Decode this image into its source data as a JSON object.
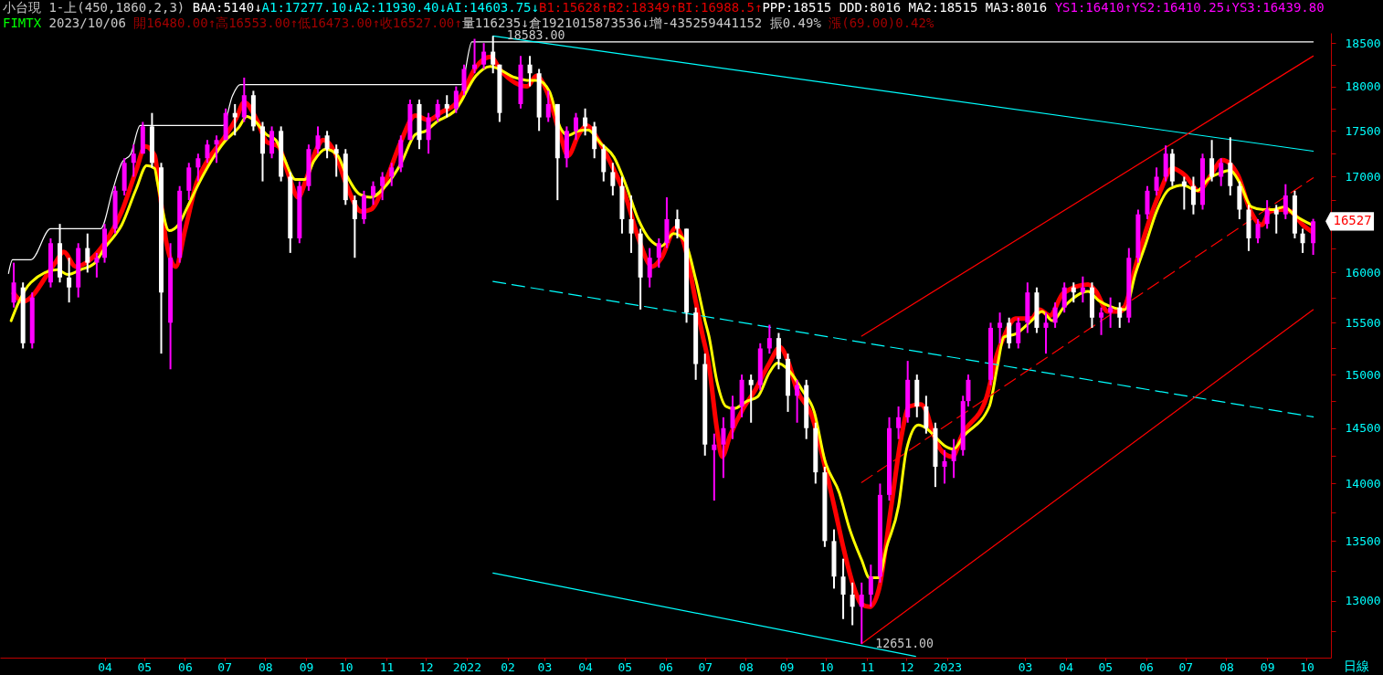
{
  "chart_data": {
    "type": "candlestick",
    "annotations": [
      "小台現 1-上(450,1860,2,3) BAA:5140↓A1:17277.10↓A2:11930.40↓AI:14603.75↓B1:15628↑B2:18349↑BI:16988.5↑PPP:18515 DDD:8016 MA2:18515 MA3:8016 YS1:16410↑YS2:16410.25↓YS3:16439.80",
      "FIMTX 2023/10/06 開16480.00↑高16553.00↑低16473.00↑收16527.00↑量116235↓倉1921015873536↓增-435259441152 振0.49% 漲(69.00)0.42%",
      "日線",
      {
        "text": "18583.00",
        "x": "2022-01-21",
        "y": 18583
      },
      {
        "text": "12651.00",
        "x": "2022-10-28",
        "y": 12651
      },
      {
        "text": "16527",
        "x": "2023-10-06",
        "y": 16527
      }
    ],
    "x": [
      "2021-01-22",
      "2021-01-29",
      "2021-02-05",
      "2021-02-19",
      "2021-02-26",
      "2021-03-05",
      "2021-03-12",
      "2021-03-19",
      "2021-03-26",
      "2021-04-01",
      "2021-04-09",
      "2021-04-16",
      "2021-04-23",
      "2021-04-30",
      "2021-05-07",
      "2021-05-14",
      "2021-05-21",
      "2021-05-28",
      "2021-06-04",
      "2021-06-11",
      "2021-06-18",
      "2021-06-25",
      "2021-07-02",
      "2021-07-09",
      "2021-07-16",
      "2021-07-23",
      "2021-07-30",
      "2021-08-06",
      "2021-08-13",
      "2021-08-20",
      "2021-08-27",
      "2021-09-03",
      "2021-09-10",
      "2021-09-17",
      "2021-09-24",
      "2021-10-01",
      "2021-10-08",
      "2021-10-15",
      "2021-10-22",
      "2021-10-29",
      "2021-11-05",
      "2021-11-12",
      "2021-11-19",
      "2021-11-26",
      "2021-12-03",
      "2021-12-10",
      "2021-12-17",
      "2021-12-24",
      "2021-12-30",
      "2022-01-07",
      "2022-01-14",
      "2022-01-21",
      "2022-01-26",
      "2022-02-11",
      "2022-02-18",
      "2022-02-25",
      "2022-03-04",
      "2022-03-11",
      "2022-03-18",
      "2022-03-25",
      "2022-04-01",
      "2022-04-08",
      "2022-04-15",
      "2022-04-22",
      "2022-04-29",
      "2022-05-06",
      "2022-05-13",
      "2022-05-20",
      "2022-05-27",
      "2022-06-02",
      "2022-06-10",
      "2022-06-17",
      "2022-06-24",
      "2022-07-01",
      "2022-07-08",
      "2022-07-15",
      "2022-07-22",
      "2022-07-29",
      "2022-08-05",
      "2022-08-12",
      "2022-08-19",
      "2022-08-26",
      "2022-09-02",
      "2022-09-09",
      "2022-09-16",
      "2022-09-23",
      "2022-09-30",
      "2022-10-07",
      "2022-10-14",
      "2022-10-21",
      "2022-10-28",
      "2022-11-04",
      "2022-11-11",
      "2022-11-18",
      "2022-11-25",
      "2022-12-02",
      "2022-12-09",
      "2022-12-16",
      "2022-12-23",
      "2022-12-30",
      "2023-01-06",
      "2023-01-13",
      "2023-01-17",
      "2023-02-03",
      "2023-02-10",
      "2023-02-17",
      "2023-02-24",
      "2023-03-03",
      "2023-03-10",
      "2023-03-17",
      "2023-03-24",
      "2023-03-31",
      "2023-04-07",
      "2023-04-14",
      "2023-04-21",
      "2023-04-28",
      "2023-05-05",
      "2023-05-12",
      "2023-05-19",
      "2023-05-26",
      "2023-06-02",
      "2023-06-09",
      "2023-06-16",
      "2023-06-21",
      "2023-06-30",
      "2023-07-07",
      "2023-07-14",
      "2023-07-21",
      "2023-07-28",
      "2023-08-04",
      "2023-08-11",
      "2023-08-18",
      "2023-08-25",
      "2023-09-01",
      "2023-09-08",
      "2023-09-15",
      "2023-09-22",
      "2023-09-28",
      "2023-10-06"
    ],
    "ohlc": [
      [
        15700,
        16100,
        15650,
        15900
      ],
      [
        15850,
        15900,
        15250,
        15300
      ],
      [
        15300,
        15800,
        15250,
        15750
      ],
      [
        15900,
        16350,
        15850,
        16300
      ],
      [
        16300,
        16500,
        15900,
        15950
      ],
      [
        15950,
        16150,
        15700,
        15850
      ],
      [
        15850,
        16300,
        15750,
        16250
      ],
      [
        16250,
        16400,
        16000,
        16100
      ],
      [
        16100,
        16200,
        15950,
        16150
      ],
      [
        16150,
        16500,
        16100,
        16450
      ],
      [
        16450,
        16900,
        16400,
        16850
      ],
      [
        16850,
        17200,
        16800,
        17150
      ],
      [
        17150,
        17350,
        17000,
        17250
      ],
      [
        17250,
        17600,
        17250,
        17550
      ],
      [
        17550,
        17700,
        17100,
        17150
      ],
      [
        17100,
        17150,
        15200,
        15800
      ],
      [
        15500,
        16300,
        15050,
        16150
      ],
      [
        16150,
        16900,
        16100,
        16850
      ],
      [
        16850,
        17150,
        16750,
        17100
      ],
      [
        17100,
        17250,
        16950,
        17200
      ],
      [
        17200,
        17400,
        17150,
        17350
      ],
      [
        17350,
        17450,
        17150,
        17400
      ],
      [
        17400,
        17750,
        17400,
        17700
      ],
      [
        17700,
        17800,
        17450,
        17650
      ],
      [
        17650,
        18100,
        17600,
        17900
      ],
      [
        17900,
        17950,
        17500,
        17550
      ],
      [
        17550,
        17600,
        16950,
        17250
      ],
      [
        17250,
        17550,
        17200,
        17500
      ],
      [
        17500,
        17550,
        16950,
        17000
      ],
      [
        17000,
        17050,
        16200,
        16350
      ],
      [
        16350,
        16950,
        16300,
        16900
      ],
      [
        16900,
        17350,
        16850,
        17300
      ],
      [
        17300,
        17550,
        17250,
        17450
      ],
      [
        17450,
        17500,
        17200,
        17300
      ],
      [
        17300,
        17350,
        17000,
        17250
      ],
      [
        17250,
        17300,
        16700,
        16750
      ],
      [
        16750,
        16800,
        16150,
        16550
      ],
      [
        16550,
        16850,
        16500,
        16800
      ],
      [
        16800,
        16950,
        16700,
        16900
      ],
      [
        16900,
        17050,
        16750,
        17000
      ],
      [
        17000,
        17150,
        16900,
        17100
      ],
      [
        17100,
        17450,
        17050,
        17400
      ],
      [
        17400,
        17850,
        17400,
        17800
      ],
      [
        17800,
        17850,
        17300,
        17400
      ],
      [
        17400,
        17700,
        17250,
        17650
      ],
      [
        17650,
        17850,
        17600,
        17800
      ],
      [
        17800,
        17900,
        17650,
        17750
      ],
      [
        17750,
        18000,
        17700,
        17950
      ],
      [
        17950,
        18250,
        17900,
        18200
      ],
      [
        18200,
        18550,
        18150,
        18250
      ],
      [
        18250,
        18500,
        18200,
        18400
      ],
      [
        18400,
        18583,
        18150,
        18250
      ],
      [
        18250,
        18250,
        17600,
        17700
      ],
      [
        17800,
        18350,
        17750,
        18250
      ],
      [
        18250,
        18350,
        18000,
        18150
      ],
      [
        18150,
        18200,
        17500,
        17650
      ],
      [
        17650,
        17950,
        17600,
        17800
      ],
      [
        17800,
        17800,
        16750,
        17200
      ],
      [
        17200,
        17550,
        17100,
        17500
      ],
      [
        17500,
        17700,
        17400,
        17650
      ],
      [
        17650,
        17750,
        17450,
        17550
      ],
      [
        17550,
        17600,
        17200,
        17300
      ],
      [
        17300,
        17350,
        16950,
        17050
      ],
      [
        17050,
        17150,
        16800,
        16900
      ],
      [
        16900,
        17000,
        16400,
        16550
      ],
      [
        16550,
        16800,
        16200,
        16400
      ],
      [
        16400,
        16450,
        15630,
        15950
      ],
      [
        15950,
        16250,
        15850,
        16150
      ],
      [
        16150,
        16350,
        16050,
        16300
      ],
      [
        16300,
        16780,
        16250,
        16550
      ],
      [
        16550,
        16650,
        16350,
        16450
      ],
      [
        16450,
        16450,
        15500,
        15600
      ],
      [
        15600,
        15650,
        14950,
        15100
      ],
      [
        15100,
        15200,
        14250,
        14350
      ],
      [
        14300,
        14450,
        13850,
        14350
      ],
      [
        14350,
        14600,
        14050,
        14500
      ],
      [
        14500,
        14800,
        14400,
        14700
      ],
      [
        14700,
        15000,
        14600,
        14950
      ],
      [
        14950,
        15000,
        14550,
        14900
      ],
      [
        14900,
        15300,
        14850,
        15250
      ],
      [
        15250,
        15480,
        15200,
        15350
      ],
      [
        15350,
        15400,
        15050,
        15150
      ],
      [
        15150,
        15200,
        14650,
        14800
      ],
      [
        14800,
        14950,
        14550,
        14900
      ],
      [
        14900,
        14950,
        14400,
        14500
      ],
      [
        14500,
        14550,
        14000,
        14100
      ],
      [
        14100,
        14150,
        13450,
        13500
      ],
      [
        13500,
        13600,
        13100,
        13200
      ],
      [
        13200,
        13350,
        12850,
        13050
      ],
      [
        13050,
        13150,
        12800,
        12950
      ],
      [
        12950,
        13150,
        12651,
        13050
      ],
      [
        13050,
        13300,
        12950,
        13200
      ],
      [
        13200,
        14000,
        13150,
        13900
      ],
      [
        13900,
        14600,
        13850,
        14500
      ],
      [
        14500,
        14700,
        14400,
        14600
      ],
      [
        14600,
        15130,
        14550,
        14950
      ],
      [
        14950,
        15000,
        14600,
        14700
      ],
      [
        14700,
        14800,
        14450,
        14500
      ],
      [
        14500,
        14550,
        13970,
        14150
      ],
      [
        14150,
        14300,
        14000,
        14200
      ],
      [
        14200,
        14400,
        14050,
        14300
      ],
      [
        14300,
        14800,
        14250,
        14750
      ],
      [
        14750,
        15000,
        14700,
        14950
      ],
      [
        14950,
        15500,
        14900,
        15450
      ],
      [
        15450,
        15600,
        15300,
        15500
      ],
      [
        15500,
        15550,
        15250,
        15300
      ],
      [
        15300,
        15550,
        15250,
        15500
      ],
      [
        15500,
        15900,
        15400,
        15800
      ],
      [
        15800,
        15850,
        15400,
        15450
      ],
      [
        15450,
        15600,
        15200,
        15500
      ],
      [
        15500,
        15700,
        15450,
        15650
      ],
      [
        15650,
        15900,
        15600,
        15850
      ],
      [
        15850,
        15900,
        15700,
        15800
      ],
      [
        15800,
        15960,
        15700,
        15850
      ],
      [
        15850,
        15900,
        15450,
        15550
      ],
      [
        15550,
        15650,
        15380,
        15600
      ],
      [
        15600,
        15750,
        15450,
        15650
      ],
      [
        15650,
        15700,
        15450,
        15550
      ],
      [
        15550,
        16250,
        15500,
        16150
      ],
      [
        16150,
        16650,
        16100,
        16600
      ],
      [
        16600,
        16900,
        16550,
        16850
      ],
      [
        16850,
        17100,
        16800,
        17000
      ],
      [
        17000,
        17340,
        16950,
        17250
      ],
      [
        17250,
        17300,
        16900,
        16950
      ],
      [
        16950,
        17000,
        16650,
        16900
      ],
      [
        16900,
        17000,
        16600,
        16700
      ],
      [
        16700,
        17250,
        16650,
        17200
      ],
      [
        17200,
        17400,
        16950,
        17000
      ],
      [
        17000,
        17200,
        16900,
        17150
      ],
      [
        17150,
        17430,
        16800,
        16900
      ],
      [
        16900,
        16950,
        16550,
        16650
      ],
      [
        16650,
        16700,
        16220,
        16350
      ],
      [
        16350,
        16550,
        16300,
        16500
      ],
      [
        16500,
        16750,
        16450,
        16650
      ],
      [
        16650,
        16700,
        16400,
        16600
      ],
      [
        16600,
        16920,
        16550,
        16800
      ],
      [
        16800,
        16850,
        16350,
        16400
      ],
      [
        16400,
        16450,
        16200,
        16300
      ],
      [
        16300,
        16553,
        16180,
        16527
      ]
    ],
    "colors": [
      "#ff00ff",
      "#ffffff",
      "#ff00ff",
      "#ff00ff",
      "#ffffff",
      "#ffffff",
      "#ff00ff",
      "#ffffff",
      "#ff00ff",
      "#ff00ff",
      "#ff00ff",
      "#ff00ff",
      "#ff00ff",
      "#ff00ff",
      "#ffffff",
      "#ffffff",
      "#ff00ff",
      "#ff00ff",
      "#ff00ff",
      "#ff00ff",
      "#ff00ff",
      "#ff00ff",
      "#ff00ff",
      "#ffffff",
      "#ff00ff",
      "#ffffff",
      "#ffffff",
      "#ff00ff",
      "#ffffff",
      "#ffffff",
      "#ff00ff",
      "#ff00ff",
      "#ff00ff",
      "#ffffff",
      "#ffffff",
      "#ffffff",
      "#ffffff",
      "#ff00ff",
      "#ff00ff",
      "#ff00ff",
      "#ff00ff",
      "#ff00ff",
      "#ff00ff",
      "#ffffff",
      "#ff00ff",
      "#ff00ff",
      "#ffffff",
      "#ff00ff",
      "#ff00ff",
      "#ff00ff",
      "#ff00ff",
      "#ffffff",
      "#ffffff",
      "#ff00ff",
      "#ffffff",
      "#ffffff",
      "#ff00ff",
      "#ffffff",
      "#ff00ff",
      "#ff00ff",
      "#ffffff",
      "#ffffff",
      "#ffffff",
      "#ffffff",
      "#ffffff",
      "#ffffff",
      "#ffffff",
      "#ff00ff",
      "#ff00ff",
      "#ff00ff",
      "#ffffff",
      "#ffffff",
      "#ffffff",
      "#ffffff",
      "#ff00ff",
      "#ff00ff",
      "#ff00ff",
      "#ff00ff",
      "#ffffff",
      "#ff00ff",
      "#ff00ff",
      "#ffffff",
      "#ffffff",
      "#ff00ff",
      "#ffffff",
      "#ffffff",
      "#ffffff",
      "#ffffff",
      "#ffffff",
      "#ffffff",
      "#ff00ff",
      "#ff00ff",
      "#ff00ff",
      "#ff00ff",
      "#ff00ff",
      "#ff00ff",
      "#ffffff",
      "#ffffff",
      "#ffffff",
      "#ff00ff",
      "#ff00ff",
      "#ff00ff",
      "#ff00ff",
      "#ff00ff",
      "#ff00ff",
      "#ffffff",
      "#ff00ff",
      "#ff00ff",
      "#ffffff",
      "#ff00ff",
      "#ff00ff",
      "#ff00ff",
      "#ffffff",
      "#ff00ff",
      "#ffffff",
      "#ff00ff",
      "#ff00ff",
      "#ffffff",
      "#ff00ff",
      "#ff00ff",
      "#ff00ff",
      "#ff00ff",
      "#ff00ff",
      "#ffffff",
      "#ffffff",
      "#ffffff",
      "#ff00ff",
      "#ffffff",
      "#ff00ff",
      "#ffffff",
      "#ffffff",
      "#ffffff",
      "#ff00ff",
      "#ff00ff",
      "#ffffff",
      "#ff00ff",
      "#ffffff",
      "#ffffff",
      "#ff00ff"
    ],
    "series": [
      {
        "type": "line",
        "color": "#ff0000",
        "x": [
          "2021-01-22",
          "2021-01-29",
          "2021-02-22",
          "2021-03-01",
          "2021-03-10",
          "2021-03-21",
          "2021-04-01",
          "2021-04-14",
          "2021-04-25",
          "2021-05-02",
          "2021-05-09",
          "2021-05-12",
          "2021-05-18",
          "2021-05-25",
          "2021-06-01",
          "2021-06-10",
          "2021-06-18",
          "2021-07-01",
          "2021-07-10",
          "2021-07-16",
          "2021-07-26",
          "2021-08-02",
          "2021-08-11",
          "2021-08-19",
          "2021-08-26",
          "2021-09-01",
          "2021-09-09",
          "2021-09-14",
          "2021-09-23",
          "2021-10-01",
          "2021-10-13",
          "2021-10-20",
          "2021-11-01",
          "2021-11-12",
          "2021-11-23",
          "2021-12-03",
          "2021-12-13",
          "2021-12-24",
          "2021-12-28",
          "2022-01-08",
          "2022-01-19",
          "2022-01-27",
          "2022-02-16",
          "2022-02-23",
          "2022-03-03",
          "2022-03-13",
          "2022-03-19",
          "2022-03-27",
          "2022-04-02",
          "2022-04-11",
          "2022-04-23",
          "2022-05-02",
          "2022-05-11",
          "2022-05-22",
          "2022-05-29",
          "2022-06-09",
          "2022-06-15",
          "2022-06-24",
          "2022-06-29",
          "2022-07-04",
          "2022-07-10",
          "2022-07-14",
          "2022-07-20",
          "2022-07-30",
          "2022-08-08",
          "2022-08-19",
          "2022-08-27",
          "2022-09-02",
          "2022-09-09",
          "2022-09-20",
          "2022-09-30",
          "2022-10-08",
          "2022-10-14",
          "2022-10-21",
          "2022-10-28",
          "2022-11-03",
          "2022-11-10",
          "2022-11-19",
          "2022-11-27",
          "2022-12-03",
          "2022-12-12",
          "2022-12-16",
          "2022-12-21",
          "2022-12-28",
          "2023-01-05",
          "2023-01-12",
          "2023-01-31",
          "2023-02-08",
          "2023-02-13",
          "2023-02-22",
          "2023-03-06",
          "2023-03-12",
          "2023-03-20",
          "2023-03-30",
          "2023-04-18",
          "2023-04-24",
          "2023-05-03",
          "2023-05-12",
          "2023-05-16",
          "2023-05-24",
          "2023-06-01",
          "2023-06-12",
          "2023-06-21",
          "2023-07-01",
          "2023-07-11",
          "2023-07-20",
          "2023-07-29",
          "2023-08-10",
          "2023-08-19",
          "2023-08-28",
          "2023-09-03",
          "2023-09-12",
          "2023-09-19",
          "2023-09-28",
          "2023-10-05"
        ],
        "values": [
          15790,
          15710,
          16090,
          16210,
          16060,
          16130,
          16300,
          16630,
          17070,
          17330,
          17230,
          16940,
          16300,
          16060,
          16430,
          16940,
          17170,
          17430,
          17640,
          17820,
          17610,
          17380,
          17330,
          17010,
          16780,
          16970,
          17300,
          17400,
          17260,
          16940,
          16630,
          16650,
          16970,
          17380,
          17670,
          17620,
          17710,
          17810,
          17900,
          18220,
          18340,
          18180,
          18000,
          18120,
          17940,
          17460,
          17230,
          17460,
          17560,
          17400,
          17070,
          16780,
          16370,
          16060,
          16150,
          16460,
          16300,
          15710,
          15390,
          15090,
          14500,
          14240,
          14430,
          14680,
          14850,
          15110,
          15260,
          15130,
          14850,
          14620,
          14160,
          13760,
          13450,
          13150,
          12970,
          12950,
          13090,
          13760,
          14410,
          14700,
          14720,
          14660,
          14460,
          14290,
          14240,
          14430,
          14790,
          15200,
          15360,
          15540,
          15540,
          15630,
          15570,
          15790,
          15880,
          15810,
          15610,
          15610,
          15660,
          16060,
          16430,
          16850,
          17090,
          17010,
          16850,
          17010,
          17180,
          17010,
          16650,
          16490,
          16630,
          16650,
          16630,
          16490,
          16420
        ]
      },
      {
        "type": "line",
        "color": "#ffff00",
        "x": [
          "2021-01-20",
          "2021-01-26",
          "2021-02-04",
          "2021-02-24",
          "2021-03-04",
          "2021-03-14",
          "2021-03-24",
          "2021-04-01",
          "2021-04-14",
          "2021-04-25",
          "2021-05-03",
          "2021-05-09",
          "2021-05-11",
          "2021-05-20",
          "2021-05-27",
          "2021-06-03",
          "2021-06-12",
          "2021-06-21",
          "2021-07-01",
          "2021-07-12",
          "2021-07-18",
          "2021-07-24",
          "2021-08-02",
          "2021-08-09",
          "2021-08-15",
          "2021-08-24",
          "2021-08-31",
          "2021-09-07",
          "2021-09-16",
          "2021-09-25",
          "2021-10-01",
          "2021-10-12",
          "2021-10-20",
          "2021-11-01",
          "2021-11-12",
          "2021-11-23",
          "2021-12-01",
          "2021-12-10",
          "2021-12-18",
          "2021-12-24",
          "2021-12-27",
          "2022-01-08",
          "2022-01-19",
          "2022-02-07",
          "2022-02-16",
          "2022-02-24",
          "2022-03-05",
          "2022-03-13",
          "2022-03-19",
          "2022-03-27",
          "2022-04-03",
          "2022-04-13",
          "2022-04-23",
          "2022-05-02",
          "2022-05-11",
          "2022-05-20",
          "2022-05-29",
          "2022-06-07",
          "2022-06-15",
          "2022-06-24",
          "2022-07-01",
          "2022-07-04",
          "2022-07-10",
          "2022-07-17",
          "2022-07-23",
          "2022-08-02",
          "2022-08-10",
          "2022-08-19",
          "2022-08-25",
          "2022-09-02",
          "2022-09-13",
          "2022-09-22",
          "2022-09-30",
          "2022-10-11",
          "2022-10-19",
          "2022-10-28",
          "2022-11-03",
          "2022-11-10",
          "2022-11-16",
          "2022-11-25",
          "2022-12-01",
          "2022-12-10",
          "2022-12-16",
          "2022-12-23",
          "2022-12-30",
          "2023-01-06",
          "2023-01-13",
          "2023-02-02",
          "2023-02-08",
          "2023-02-13",
          "2023-02-22",
          "2023-03-06",
          "2023-03-14",
          "2023-03-22",
          "2023-03-31",
          "2023-04-18",
          "2023-04-26",
          "2023-05-05",
          "2023-05-16",
          "2023-05-24",
          "2023-06-01",
          "2023-06-09",
          "2023-06-19",
          "2023-06-29",
          "2023-07-10",
          "2023-07-18",
          "2023-07-27",
          "2023-08-04",
          "2023-08-11",
          "2023-08-20",
          "2023-08-29",
          "2023-09-06",
          "2023-09-14",
          "2023-09-22",
          "2023-10-05"
        ],
        "values": [
          15520,
          15710,
          15900,
          16030,
          15980,
          16030,
          16090,
          16250,
          16490,
          16870,
          17120,
          17090,
          16950,
          16430,
          16490,
          16680,
          16940,
          17170,
          17380,
          17540,
          17660,
          17610,
          17460,
          17400,
          17210,
          16970,
          16970,
          17170,
          17300,
          17230,
          17040,
          16810,
          16780,
          16910,
          17140,
          17460,
          17500,
          17610,
          17670,
          17740,
          17810,
          18120,
          18230,
          18100,
          18070,
          18070,
          17940,
          17540,
          17450,
          17500,
          17510,
          17360,
          17210,
          16910,
          16560,
          16340,
          16270,
          16400,
          16340,
          15930,
          15520,
          15370,
          14940,
          14700,
          14680,
          14750,
          14790,
          15020,
          15110,
          15050,
          14850,
          14650,
          14210,
          13920,
          13600,
          13340,
          13190,
          13190,
          13450,
          13800,
          14300,
          14530,
          14500,
          14420,
          14340,
          14310,
          14420,
          14700,
          15070,
          15360,
          15390,
          15520,
          15610,
          15520,
          15660,
          15810,
          15720,
          15660,
          15630,
          15990,
          16300,
          16630,
          16870,
          16910,
          16850,
          16970,
          17040,
          17070,
          16940,
          16680,
          16650,
          16650,
          16680,
          16590,
          16490
        ]
      },
      {
        "type": "line",
        "color": "#ffffff",
        "x": [
          "2021-01-18",
          "2021-01-21",
          "2021-02-04",
          "2021-02-19",
          "2021-03-29",
          "2021-04-07",
          "2021-04-14",
          "2021-04-21",
          "2021-04-28",
          "2021-06-30",
          "2021-07-07",
          "2021-07-13",
          "2021-12-28",
          "2022-01-05",
          "2023-10-06"
        ],
        "values": [
          15990,
          16130,
          16130,
          16450,
          16450,
          16850,
          17150,
          17250,
          17560,
          17560,
          17890,
          18020,
          18020,
          18515,
          18515
        ]
      },
      {
        "type": "line",
        "color": "#00ffff",
        "x": [
          "2022-01-21",
          "2023-10-06"
        ],
        "values": [
          18583,
          17277.1
        ]
      },
      {
        "type": "line",
        "color": "#00ffff",
        "line_style": "dashed",
        "x": [
          "2022-01-21",
          "2023-10-06"
        ],
        "values": [
          15910,
          14603.75
        ]
      },
      {
        "type": "line",
        "color": "#00ffff",
        "x": [
          "2022-01-21",
          "2022-12-08"
        ],
        "values": [
          13230,
          12550
        ]
      },
      {
        "type": "line",
        "color": "#ff0000",
        "x": [
          "2022-10-28",
          "2023-10-06"
        ],
        "values": [
          15370,
          18349
        ]
      },
      {
        "type": "line",
        "color": "#ff0000",
        "line_style": "dashed",
        "x": [
          "2022-10-28",
          "2023-10-06"
        ],
        "values": [
          14010,
          16988.5
        ]
      },
      {
        "type": "line",
        "color": "#ff0000",
        "x": [
          "2022-10-28",
          "2023-10-06"
        ],
        "values": [
          12651,
          15628
        ]
      }
    ],
    "xlim": [
      "2021-01-15",
      "2023-10-16"
    ],
    "xticks": [
      {
        "value": "2021-04-01",
        "label": "04"
      },
      {
        "value": "2021-05-01",
        "label": "05"
      },
      {
        "value": "2021-06-01",
        "label": "06"
      },
      {
        "value": "2021-07-01",
        "label": "07"
      },
      {
        "value": "2021-08-01",
        "label": "08"
      },
      {
        "value": "2021-09-01",
        "label": "09"
      },
      {
        "value": "2021-10-01",
        "label": "10"
      },
      {
        "value": "2021-11-01",
        "label": "11"
      },
      {
        "value": "2021-12-01",
        "label": "12"
      },
      {
        "value": "2022-01-01",
        "label": "2022"
      },
      {
        "value": "2022-02-01",
        "label": "02"
      },
      {
        "value": "2022-03-01",
        "label": "03"
      },
      {
        "value": "2022-04-01",
        "label": "04"
      },
      {
        "value": "2022-05-01",
        "label": "05"
      },
      {
        "value": "2022-06-01",
        "label": "06"
      },
      {
        "value": "2022-07-01",
        "label": "07"
      },
      {
        "value": "2022-08-01",
        "label": "08"
      },
      {
        "value": "2022-09-01",
        "label": "09"
      },
      {
        "value": "2022-10-01",
        "label": "10"
      },
      {
        "value": "2022-11-01",
        "label": "11"
      },
      {
        "value": "2022-12-01",
        "label": "12"
      },
      {
        "value": "2023-01-01",
        "label": "2023"
      },
      {
        "value": "2023-03-01",
        "label": "03"
      },
      {
        "value": "2023-04-01",
        "label": "04"
      },
      {
        "value": "2023-05-01",
        "label": "05"
      },
      {
        "value": "2023-06-01",
        "label": "06"
      },
      {
        "value": "2023-07-01",
        "label": "07"
      },
      {
        "value": "2023-08-01",
        "label": "08"
      },
      {
        "value": "2023-09-01",
        "label": "09"
      },
      {
        "value": "2023-10-01",
        "label": "10"
      }
    ],
    "ylim": [
      12540,
      18620
    ],
    "yticks": [
      {
        "value": 12750,
        "label": null
      },
      13000,
      {
        "value": 13250,
        "label": null
      },
      13500,
      {
        "value": 13750,
        "label": null
      },
      14000,
      {
        "value": 14250,
        "label": null
      },
      14500,
      {
        "value": 14750,
        "label": null
      },
      15000,
      {
        "value": 15250,
        "label": null
      },
      15500,
      {
        "value": 15750,
        "label": null
      },
      16000,
      {
        "value": 16250,
        "label": null
      },
      {
        "value": 16500,
        "label": null
      },
      {
        "value": 16750,
        "label": null
      },
      17000,
      {
        "value": 17250,
        "label": null
      },
      17500,
      {
        "value": 17750,
        "label": null
      },
      18000,
      {
        "value": 18250,
        "label": null
      },
      18500
    ],
    "log": true
  }
}
